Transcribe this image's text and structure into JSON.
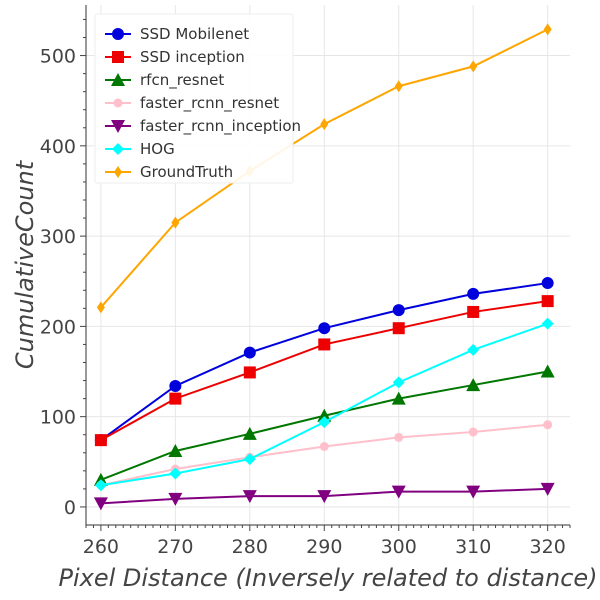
{
  "chart_data": {
    "type": "line",
    "title": "",
    "xlabel": "Pixel Distance (Inversely related to distance)",
    "ylabel": "CumulativeCount",
    "x": [
      260,
      270,
      280,
      290,
      300,
      310,
      320
    ],
    "xlim": [
      258,
      323
    ],
    "ylim": [
      -20,
      556
    ],
    "xticks": [
      260,
      270,
      280,
      290,
      300,
      310,
      320
    ],
    "yticks": [
      0,
      100,
      200,
      300,
      400,
      500
    ],
    "grid": true,
    "legend_position": "top-left",
    "series": [
      {
        "name": "SSD Mobilenet",
        "color": "#0000dd",
        "marker": "circle",
        "values": [
          74,
          134,
          171,
          198,
          218,
          236,
          248
        ]
      },
      {
        "name": "SSD inception",
        "color": "#ee0000",
        "marker": "square",
        "values": [
          74,
          120,
          149,
          180,
          198,
          216,
          228
        ]
      },
      {
        "name": "rfcn_resnet",
        "color": "#007700",
        "marker": "triangle-up",
        "values": [
          30,
          62,
          81,
          101,
          120,
          135,
          150
        ]
      },
      {
        "name": "faster_rcnn_resnet",
        "color": "#ffc0cb",
        "marker": "circle-small",
        "values": [
          24,
          42,
          55,
          67,
          77,
          83,
          91
        ]
      },
      {
        "name": "faster_rcnn_inception",
        "color": "#800080",
        "marker": "triangle-down",
        "values": [
          4,
          9,
          12,
          12,
          17,
          17,
          20
        ]
      },
      {
        "name": "HOG",
        "color": "#00ffff",
        "marker": "diamond",
        "values": [
          24,
          37,
          53,
          94,
          138,
          174,
          203
        ]
      },
      {
        "name": "GroundTruth",
        "color": "#ffa500",
        "marker": "thin-diamond",
        "values": [
          221,
          315,
          372,
          424,
          466,
          488,
          529
        ]
      }
    ]
  }
}
